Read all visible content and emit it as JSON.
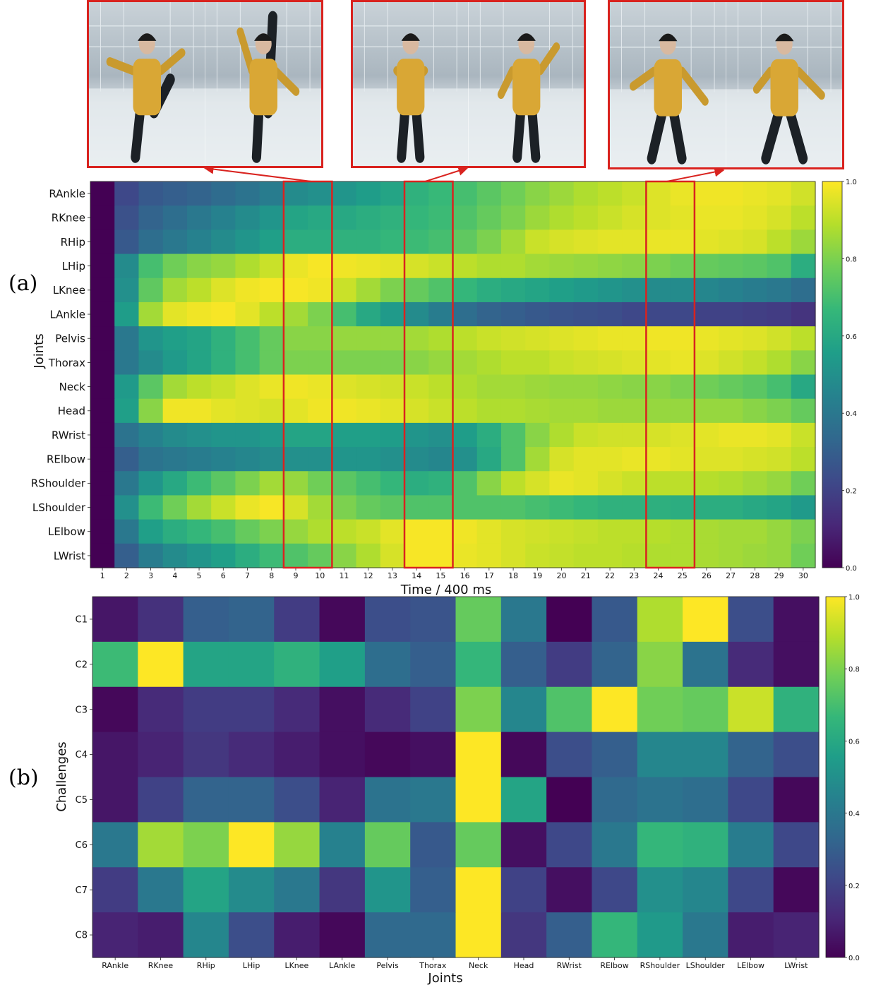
{
  "frames": [
    {
      "label": "frames 9-10",
      "scene": "dance-studio",
      "pose_left": "high-kick",
      "pose_right": "leg-raise"
    },
    {
      "label": "frames 14-15",
      "scene": "dance-studio",
      "pose_left": "arms-crossed",
      "pose_right": "arm-raised"
    },
    {
      "label": "frames 24-25",
      "scene": "dance-studio",
      "pose_left": "swing",
      "pose_right": "stride"
    }
  ],
  "panel_a": {
    "label": "(a)"
  },
  "panel_b": {
    "label": "(b)"
  },
  "colors": {
    "highlight": "#d9231f",
    "viridis": [
      "#440154",
      "#482878",
      "#3e4989",
      "#31688e",
      "#26828e",
      "#1f9e89",
      "#35b779",
      "#6ece58",
      "#b5de2b",
      "#fde725"
    ]
  },
  "chart_data": [
    {
      "type": "heatmap",
      "title": "",
      "xlabel": "Time / 400 ms",
      "ylabel": "Joints",
      "x": [
        "1",
        "2",
        "3",
        "4",
        "5",
        "6",
        "7",
        "8",
        "9",
        "10",
        "11",
        "12",
        "13",
        "14",
        "15",
        "16",
        "17",
        "18",
        "19",
        "20",
        "21",
        "22",
        "23",
        "24",
        "25",
        "26",
        "27",
        "28",
        "29",
        "30"
      ],
      "y": [
        "RAnkle",
        "RKnee",
        "RHip",
        "LHip",
        "LKnee",
        "LAnkle",
        "Pelvis",
        "Thorax",
        "Neck",
        "Head",
        "RWrist",
        "RElbow",
        "RShoulder",
        "LShoulder",
        "LElbow",
        "LWrist"
      ],
      "colorbar": {
        "min": 0.0,
        "max": 1.0,
        "ticks": [
          "0.0",
          "0.2",
          "0.4",
          "0.6",
          "0.8",
          "1.0"
        ]
      },
      "highlights": [
        [
          "9",
          "10"
        ],
        [
          "14",
          "15"
        ],
        [
          "24",
          "25"
        ]
      ],
      "values": [
        [
          0.0,
          0.22,
          0.28,
          0.3,
          0.32,
          0.35,
          0.38,
          0.42,
          0.48,
          0.5,
          0.52,
          0.55,
          0.58,
          0.64,
          0.67,
          0.7,
          0.74,
          0.78,
          0.82,
          0.85,
          0.88,
          0.9,
          0.92,
          0.95,
          0.97,
          0.98,
          0.98,
          0.97,
          0.96,
          0.93
        ],
        [
          0.0,
          0.25,
          0.32,
          0.36,
          0.4,
          0.44,
          0.48,
          0.52,
          0.58,
          0.6,
          0.6,
          0.62,
          0.64,
          0.66,
          0.68,
          0.72,
          0.76,
          0.8,
          0.85,
          0.88,
          0.9,
          0.92,
          0.94,
          0.95,
          0.96,
          0.97,
          0.97,
          0.96,
          0.94,
          0.9
        ],
        [
          0.0,
          0.28,
          0.36,
          0.4,
          0.44,
          0.48,
          0.52,
          0.56,
          0.62,
          0.62,
          0.64,
          0.64,
          0.66,
          0.68,
          0.7,
          0.75,
          0.8,
          0.86,
          0.92,
          0.94,
          0.95,
          0.96,
          0.96,
          0.97,
          0.97,
          0.96,
          0.95,
          0.94,
          0.9,
          0.85
        ],
        [
          0.0,
          0.48,
          0.7,
          0.78,
          0.82,
          0.84,
          0.88,
          0.92,
          0.97,
          0.99,
          0.98,
          0.97,
          0.96,
          0.94,
          0.92,
          0.9,
          0.88,
          0.88,
          0.86,
          0.85,
          0.84,
          0.83,
          0.82,
          0.8,
          0.78,
          0.76,
          0.75,
          0.74,
          0.72,
          0.62
        ],
        [
          0.0,
          0.5,
          0.75,
          0.86,
          0.9,
          0.95,
          0.98,
          0.99,
          0.99,
          0.98,
          0.92,
          0.86,
          0.8,
          0.76,
          0.72,
          0.66,
          0.62,
          0.6,
          0.58,
          0.56,
          0.54,
          0.52,
          0.5,
          0.48,
          0.48,
          0.46,
          0.44,
          0.42,
          0.4,
          0.36
        ],
        [
          0.0,
          0.55,
          0.86,
          0.96,
          0.98,
          0.99,
          0.96,
          0.9,
          0.86,
          0.8,
          0.7,
          0.6,
          0.54,
          0.48,
          0.42,
          0.36,
          0.32,
          0.3,
          0.28,
          0.26,
          0.25,
          0.24,
          0.22,
          0.22,
          0.22,
          0.2,
          0.2,
          0.19,
          0.18,
          0.15
        ],
        [
          0.0,
          0.4,
          0.52,
          0.56,
          0.58,
          0.64,
          0.7,
          0.76,
          0.82,
          0.82,
          0.84,
          0.84,
          0.84,
          0.86,
          0.88,
          0.9,
          0.92,
          0.93,
          0.94,
          0.95,
          0.96,
          0.97,
          0.97,
          0.98,
          0.98,
          0.97,
          0.96,
          0.95,
          0.93,
          0.9
        ],
        [
          0.0,
          0.4,
          0.48,
          0.54,
          0.58,
          0.64,
          0.7,
          0.76,
          0.8,
          0.8,
          0.8,
          0.8,
          0.8,
          0.82,
          0.84,
          0.86,
          0.88,
          0.9,
          0.9,
          0.92,
          0.93,
          0.94,
          0.95,
          0.96,
          0.97,
          0.95,
          0.93,
          0.91,
          0.88,
          0.82
        ],
        [
          0.0,
          0.54,
          0.74,
          0.86,
          0.9,
          0.92,
          0.95,
          0.97,
          0.98,
          0.97,
          0.95,
          0.94,
          0.93,
          0.92,
          0.9,
          0.88,
          0.86,
          0.86,
          0.85,
          0.84,
          0.84,
          0.83,
          0.82,
          0.82,
          0.8,
          0.78,
          0.76,
          0.74,
          0.7,
          0.6
        ],
        [
          0.0,
          0.56,
          0.82,
          0.98,
          0.98,
          0.96,
          0.95,
          0.94,
          0.96,
          0.98,
          0.98,
          0.97,
          0.96,
          0.94,
          0.92,
          0.9,
          0.88,
          0.88,
          0.87,
          0.86,
          0.86,
          0.85,
          0.85,
          0.84,
          0.84,
          0.84,
          0.84,
          0.82,
          0.8,
          0.76
        ],
        [
          0.0,
          0.38,
          0.44,
          0.48,
          0.5,
          0.52,
          0.52,
          0.54,
          0.58,
          0.58,
          0.56,
          0.56,
          0.55,
          0.52,
          0.5,
          0.55,
          0.62,
          0.72,
          0.82,
          0.88,
          0.92,
          0.93,
          0.93,
          0.94,
          0.95,
          0.96,
          0.97,
          0.97,
          0.96,
          0.92
        ],
        [
          0.0,
          0.3,
          0.38,
          0.4,
          0.42,
          0.44,
          0.46,
          0.48,
          0.5,
          0.5,
          0.52,
          0.52,
          0.5,
          0.48,
          0.46,
          0.5,
          0.6,
          0.72,
          0.86,
          0.94,
          0.96,
          0.96,
          0.97,
          0.97,
          0.96,
          0.95,
          0.95,
          0.94,
          0.93,
          0.9
        ],
        [
          0.0,
          0.4,
          0.52,
          0.6,
          0.68,
          0.74,
          0.8,
          0.86,
          0.84,
          0.78,
          0.74,
          0.7,
          0.66,
          0.62,
          0.64,
          0.72,
          0.82,
          0.9,
          0.94,
          0.97,
          0.96,
          0.94,
          0.92,
          0.9,
          0.9,
          0.89,
          0.88,
          0.86,
          0.84,
          0.78
        ],
        [
          0.0,
          0.5,
          0.68,
          0.78,
          0.86,
          0.92,
          0.97,
          0.99,
          0.94,
          0.86,
          0.8,
          0.76,
          0.74,
          0.72,
          0.72,
          0.72,
          0.72,
          0.72,
          0.7,
          0.68,
          0.66,
          0.64,
          0.64,
          0.63,
          0.62,
          0.62,
          0.62,
          0.6,
          0.58,
          0.54
        ],
        [
          0.0,
          0.4,
          0.56,
          0.62,
          0.66,
          0.7,
          0.76,
          0.8,
          0.84,
          0.88,
          0.9,
          0.92,
          0.96,
          0.99,
          0.99,
          0.98,
          0.96,
          0.94,
          0.93,
          0.92,
          0.91,
          0.9,
          0.9,
          0.89,
          0.88,
          0.87,
          0.86,
          0.86,
          0.84,
          0.8
        ],
        [
          0.0,
          0.3,
          0.42,
          0.48,
          0.52,
          0.56,
          0.62,
          0.68,
          0.72,
          0.76,
          0.82,
          0.88,
          0.94,
          0.99,
          0.99,
          0.97,
          0.96,
          0.94,
          0.92,
          0.91,
          0.9,
          0.9,
          0.89,
          0.88,
          0.88,
          0.87,
          0.86,
          0.85,
          0.84,
          0.78
        ]
      ]
    },
    {
      "type": "heatmap",
      "title": "",
      "xlabel": "Joints",
      "ylabel": "Challenges",
      "x": [
        "RAnkle",
        "RKnee",
        "RHip",
        "LHip",
        "LKnee",
        "LAnkle",
        "Pelvis",
        "Thorax",
        "Neck",
        "Head",
        "RWrist",
        "RElbow",
        "RShoulder",
        "LShoulder",
        "LElbow",
        "LWrist"
      ],
      "y": [
        "C1",
        "C2",
        "C3",
        "C4",
        "C5",
        "C6",
        "C7",
        "C8"
      ],
      "colorbar": {
        "min": 0.0,
        "max": 1.0,
        "ticks": [
          "0.0",
          "0.2",
          "0.4",
          "0.6",
          "0.8",
          "1.0"
        ]
      },
      "values": [
        [
          0.06,
          0.14,
          0.3,
          0.32,
          0.18,
          0.02,
          0.24,
          0.26,
          0.76,
          0.4,
          0.0,
          0.28,
          0.88,
          1.0,
          0.24,
          0.04
        ],
        [
          0.68,
          1.0,
          0.58,
          0.58,
          0.64,
          0.56,
          0.36,
          0.3,
          0.66,
          0.3,
          0.18,
          0.32,
          0.82,
          0.38,
          0.12,
          0.04
        ],
        [
          0.02,
          0.12,
          0.18,
          0.18,
          0.12,
          0.04,
          0.12,
          0.2,
          0.8,
          0.46,
          0.72,
          1.0,
          0.78,
          0.76,
          0.92,
          0.64
        ],
        [
          0.06,
          0.1,
          0.16,
          0.12,
          0.08,
          0.04,
          0.02,
          0.04,
          1.0,
          0.02,
          0.24,
          0.3,
          0.46,
          0.46,
          0.32,
          0.24
        ],
        [
          0.06,
          0.2,
          0.32,
          0.32,
          0.24,
          0.1,
          0.38,
          0.4,
          1.0,
          0.58,
          0.0,
          0.34,
          0.38,
          0.36,
          0.22,
          0.02
        ],
        [
          0.4,
          0.86,
          0.8,
          1.0,
          0.84,
          0.44,
          0.76,
          0.28,
          0.76,
          0.04,
          0.22,
          0.4,
          0.66,
          0.64,
          0.42,
          0.22
        ],
        [
          0.18,
          0.4,
          0.58,
          0.48,
          0.4,
          0.16,
          0.52,
          0.3,
          1.0,
          0.2,
          0.04,
          0.22,
          0.5,
          0.46,
          0.22,
          0.02
        ],
        [
          0.1,
          0.08,
          0.46,
          0.24,
          0.08,
          0.02,
          0.34,
          0.34,
          1.0,
          0.16,
          0.3,
          0.66,
          0.54,
          0.4,
          0.08,
          0.1
        ]
      ]
    }
  ]
}
